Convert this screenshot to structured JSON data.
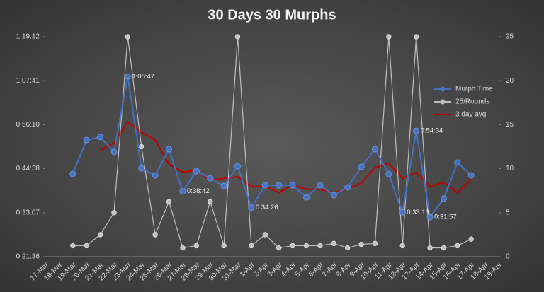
{
  "chart_data": {
    "type": "line",
    "title": "30 Days 30 Murphs",
    "categories": [
      "17-Mar",
      "18-Mar",
      "19-Mar",
      "20-Mar",
      "21-Mar",
      "22-Mar",
      "23-Mar",
      "24-Mar",
      "25-Mar",
      "26-Mar",
      "27-Mar",
      "28-Mar",
      "29-Mar",
      "30-Mar",
      "31-Mar",
      "1-Apr",
      "2-Apr",
      "3-Apr",
      "4-Apr",
      "5-Apr",
      "6-Apr",
      "7-Apr",
      "8-Apr",
      "9-Apr",
      "10-Apr",
      "11-Apr",
      "12-Apr",
      "13-Apr",
      "14-Apr",
      "15-Apr",
      "16-Apr",
      "17-Apr",
      "18-Apr",
      "19-Apr"
    ],
    "ylim": [
      1296,
      4752
    ],
    "yticks": [
      {
        "value": 1296,
        "label": "0:21:36"
      },
      {
        "value": 1987.2,
        "label": "0:33:07"
      },
      {
        "value": 2678.4,
        "label": "0:44:38"
      },
      {
        "value": 3369.6,
        "label": "0:56:10"
      },
      {
        "value": 4060.8,
        "label": "1:07:41"
      },
      {
        "value": 4752,
        "label": "1:19:12"
      }
    ],
    "y2lim": [
      0,
      25
    ],
    "y2ticks": [
      0,
      5,
      10,
      15,
      20,
      25
    ],
    "grid": false,
    "legend": "right",
    "series": [
      {
        "name": "Murph Time",
        "color": "#4472c4",
        "markers": true,
        "values": [
          null,
          null,
          2596,
          3130,
          3174,
          2941,
          4127,
          2685,
          2574,
          2985,
          2322,
          2641,
          2529,
          2407,
          2718,
          2066,
          2418,
          2418,
          2418,
          2229,
          2418,
          2263,
          2385,
          2707,
          2985,
          2596,
          1993,
          3274,
          1917,
          2207,
          2774,
          2574,
          null,
          null
        ],
        "value_labels": [
          null,
          null,
          null,
          null,
          null,
          null,
          "1:08:47",
          null,
          null,
          null,
          "0:38:42",
          null,
          null,
          null,
          null,
          "0:34:26",
          null,
          null,
          null,
          null,
          null,
          null,
          null,
          null,
          null,
          null,
          "0:33:13",
          "0:54:34",
          "0:31:57",
          null,
          null,
          null,
          null,
          null
        ]
      },
      {
        "name": "25/Rounds",
        "color": "#bfbfbf",
        "markers": true,
        "axis": "y2",
        "values": [
          null,
          null,
          1.25,
          1.25,
          2.5,
          5,
          25,
          12.5,
          2.5,
          6.25,
          1,
          1.25,
          6.25,
          1.25,
          25,
          1.25,
          2.5,
          1,
          1.25,
          1.25,
          1.25,
          1.5,
          1,
          1.4,
          1.5,
          25,
          1.25,
          25,
          1,
          1,
          1.25,
          2,
          null,
          null
        ]
      },
      {
        "name": "3 day avg",
        "color": "#c00000",
        "markers": false,
        "values": [
          null,
          null,
          null,
          null,
          2967,
          3082,
          3414,
          3251,
          3129,
          2748,
          2627,
          2649,
          2497,
          2526,
          2551,
          2397,
          2401,
          2301,
          2418,
          2355,
          2355,
          2303,
          2355,
          2452,
          2692,
          2763,
          2525,
          2621,
          2395,
          2466,
          2299,
          2518,
          null,
          null
        ]
      }
    ]
  }
}
